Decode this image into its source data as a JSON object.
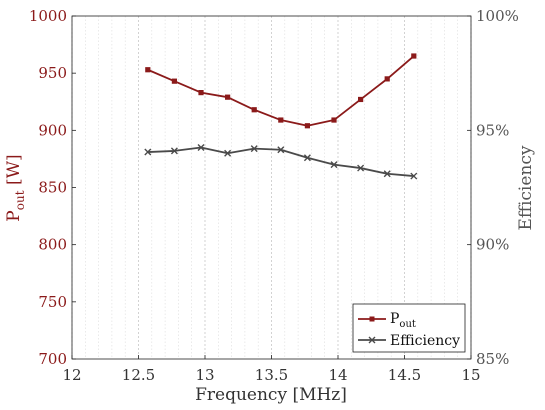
{
  "chart_data": {
    "type": "line",
    "xlabel": "Frequency [MHz]",
    "ylabel_left": {
      "main": "P",
      "sub": "out",
      "rest": " [W]"
    },
    "ylabel_right": "Efficiency",
    "xlim": [
      12,
      15
    ],
    "ylim_left": [
      700,
      1000
    ],
    "ylim_right": [
      85,
      100
    ],
    "x_ticks": [
      "12",
      "12.5",
      "13",
      "13.5",
      "14",
      "14.5",
      "15"
    ],
    "x_tick_values": [
      12,
      12.5,
      13,
      13.5,
      14,
      14.5,
      15
    ],
    "y_left_ticks": [
      "700",
      "750",
      "800",
      "850",
      "900",
      "950",
      "1000"
    ],
    "y_left_tick_values": [
      700,
      750,
      800,
      850,
      900,
      950,
      1000
    ],
    "y_right_ticks": [
      "85%",
      "90%",
      "95%",
      "100%"
    ],
    "y_right_tick_values": [
      85,
      90,
      95,
      100
    ],
    "grid": {
      "x_major": true,
      "x_minor": true,
      "y": false
    },
    "legend_position": "bottom-right",
    "x": [
      12.57,
      12.77,
      12.97,
      13.17,
      13.37,
      13.57,
      13.77,
      13.97,
      14.17,
      14.37,
      14.57
    ],
    "series": [
      {
        "name": "P",
        "name_sub": "out",
        "axis": "left",
        "marker": "square",
        "color": "#8b1a1a",
        "values": [
          953,
          943,
          933,
          929,
          918,
          909,
          904,
          909,
          927,
          945,
          965
        ]
      },
      {
        "name": "Efficiency",
        "axis": "right",
        "marker": "x",
        "color": "#4a4a4a",
        "values": [
          94.05,
          94.1,
          94.25,
          94.0,
          94.2,
          94.15,
          93.8,
          93.5,
          93.35,
          93.1,
          93.0
        ]
      }
    ]
  },
  "colors": {
    "left_axis": "#8b1a1a",
    "right_axis": "#555555",
    "grid": "#dcdcdc"
  }
}
